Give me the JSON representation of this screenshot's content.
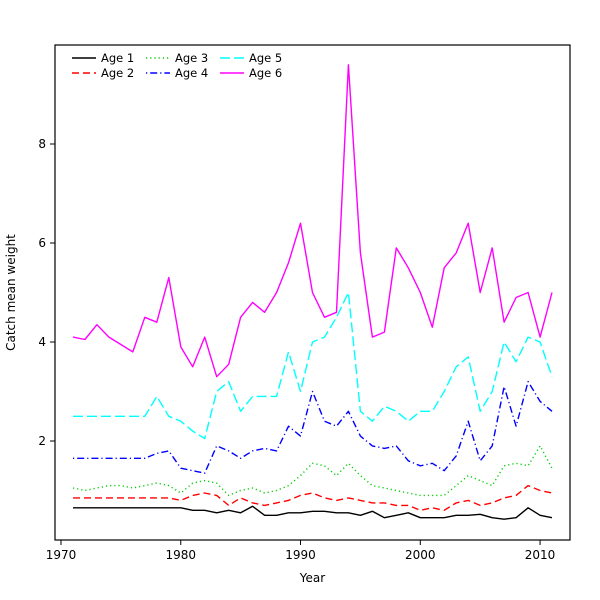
{
  "chart_data": {
    "type": "line",
    "title": "",
    "xlabel": "Year",
    "ylabel": "Catch mean weight",
    "grid": false,
    "legend_position": "top-left",
    "legend_ncol": 3,
    "xlim": [
      1969.5,
      2012.5
    ],
    "ylim": [
      0,
      10
    ],
    "xticks": [
      1970,
      1980,
      1990,
      2000,
      2010
    ],
    "yticks": [
      2,
      4,
      6,
      8
    ],
    "x": [
      1971,
      1972,
      1973,
      1974,
      1975,
      1976,
      1977,
      1978,
      1979,
      1980,
      1981,
      1982,
      1983,
      1984,
      1985,
      1986,
      1987,
      1988,
      1989,
      1990,
      1991,
      1992,
      1993,
      1994,
      1995,
      1996,
      1997,
      1998,
      1999,
      2000,
      2001,
      2002,
      2003,
      2004,
      2005,
      2006,
      2007,
      2008,
      2009,
      2010,
      2011
    ],
    "series": [
      {
        "name": "Age 1",
        "color": "#000000",
        "dash": "solid",
        "values": [
          0.65,
          0.65,
          0.65,
          0.65,
          0.65,
          0.65,
          0.65,
          0.65,
          0.65,
          0.65,
          0.6,
          0.6,
          0.55,
          0.6,
          0.55,
          0.68,
          0.5,
          0.5,
          0.55,
          0.55,
          0.58,
          0.58,
          0.55,
          0.55,
          0.5,
          0.58,
          0.45,
          0.5,
          0.55,
          0.45,
          0.45,
          0.45,
          0.5,
          0.5,
          0.52,
          0.45,
          0.42,
          0.45,
          0.65,
          0.5,
          0.45
        ]
      },
      {
        "name": "Age 2",
        "color": "#FF0000",
        "dash": "dashed",
        "values": [
          0.85,
          0.85,
          0.85,
          0.85,
          0.85,
          0.85,
          0.85,
          0.85,
          0.85,
          0.8,
          0.9,
          0.95,
          0.9,
          0.7,
          0.85,
          0.75,
          0.7,
          0.75,
          0.8,
          0.9,
          0.95,
          0.85,
          0.8,
          0.85,
          0.8,
          0.75,
          0.75,
          0.7,
          0.7,
          0.6,
          0.65,
          0.6,
          0.75,
          0.8,
          0.7,
          0.75,
          0.85,
          0.9,
          1.1,
          1.0,
          0.95
        ]
      },
      {
        "name": "Age 3",
        "color": "#00CD00",
        "dash": "dotted",
        "values": [
          1.05,
          1.0,
          1.05,
          1.1,
          1.1,
          1.05,
          1.1,
          1.15,
          1.1,
          0.95,
          1.15,
          1.2,
          1.15,
          0.9,
          1.0,
          1.05,
          0.95,
          1.0,
          1.1,
          1.3,
          1.55,
          1.5,
          1.3,
          1.55,
          1.3,
          1.1,
          1.05,
          1.0,
          0.95,
          0.9,
          0.9,
          0.9,
          1.1,
          1.3,
          1.2,
          1.1,
          1.5,
          1.55,
          1.5,
          1.9,
          1.45
        ]
      },
      {
        "name": "Age 4",
        "color": "#0000FF",
        "dash": "dashdot",
        "values": [
          1.65,
          1.65,
          1.65,
          1.65,
          1.65,
          1.65,
          1.65,
          1.75,
          1.8,
          1.45,
          1.4,
          1.35,
          1.9,
          1.8,
          1.65,
          1.8,
          1.85,
          1.8,
          2.3,
          2.1,
          3.0,
          2.4,
          2.3,
          2.6,
          2.1,
          1.9,
          1.85,
          1.9,
          1.6,
          1.5,
          1.55,
          1.4,
          1.7,
          2.4,
          1.6,
          1.9,
          3.1,
          2.3,
          3.2,
          2.8,
          2.6
        ]
      },
      {
        "name": "Age 5",
        "color": "#00FFFF",
        "dash": "longdash",
        "values": [
          2.5,
          2.5,
          2.5,
          2.5,
          2.5,
          2.5,
          2.5,
          2.9,
          2.5,
          2.4,
          2.2,
          2.05,
          3.0,
          3.2,
          2.6,
          2.9,
          2.9,
          2.9,
          3.8,
          3.0,
          4.0,
          4.1,
          4.5,
          5.0,
          2.6,
          2.4,
          2.7,
          2.6,
          2.4,
          2.6,
          2.6,
          3.0,
          3.5,
          3.7,
          2.6,
          3.0,
          4.0,
          3.6,
          4.1,
          4.0,
          3.3
        ]
      },
      {
        "name": "Age 6",
        "color": "#FF00FF",
        "dash": "solid",
        "values": [
          4.1,
          4.05,
          4.35,
          4.1,
          3.95,
          3.8,
          4.5,
          4.4,
          5.3,
          3.9,
          3.5,
          4.1,
          3.3,
          3.55,
          4.5,
          4.8,
          4.6,
          5.0,
          5.6,
          6.4,
          5.0,
          4.5,
          4.6,
          9.6,
          5.8,
          4.1,
          4.2,
          5.9,
          5.5,
          5.0,
          4.3,
          5.5,
          5.8,
          6.4,
          5.0,
          5.9,
          4.4,
          4.9,
          5.0,
          4.1,
          5.0
        ]
      }
    ]
  }
}
